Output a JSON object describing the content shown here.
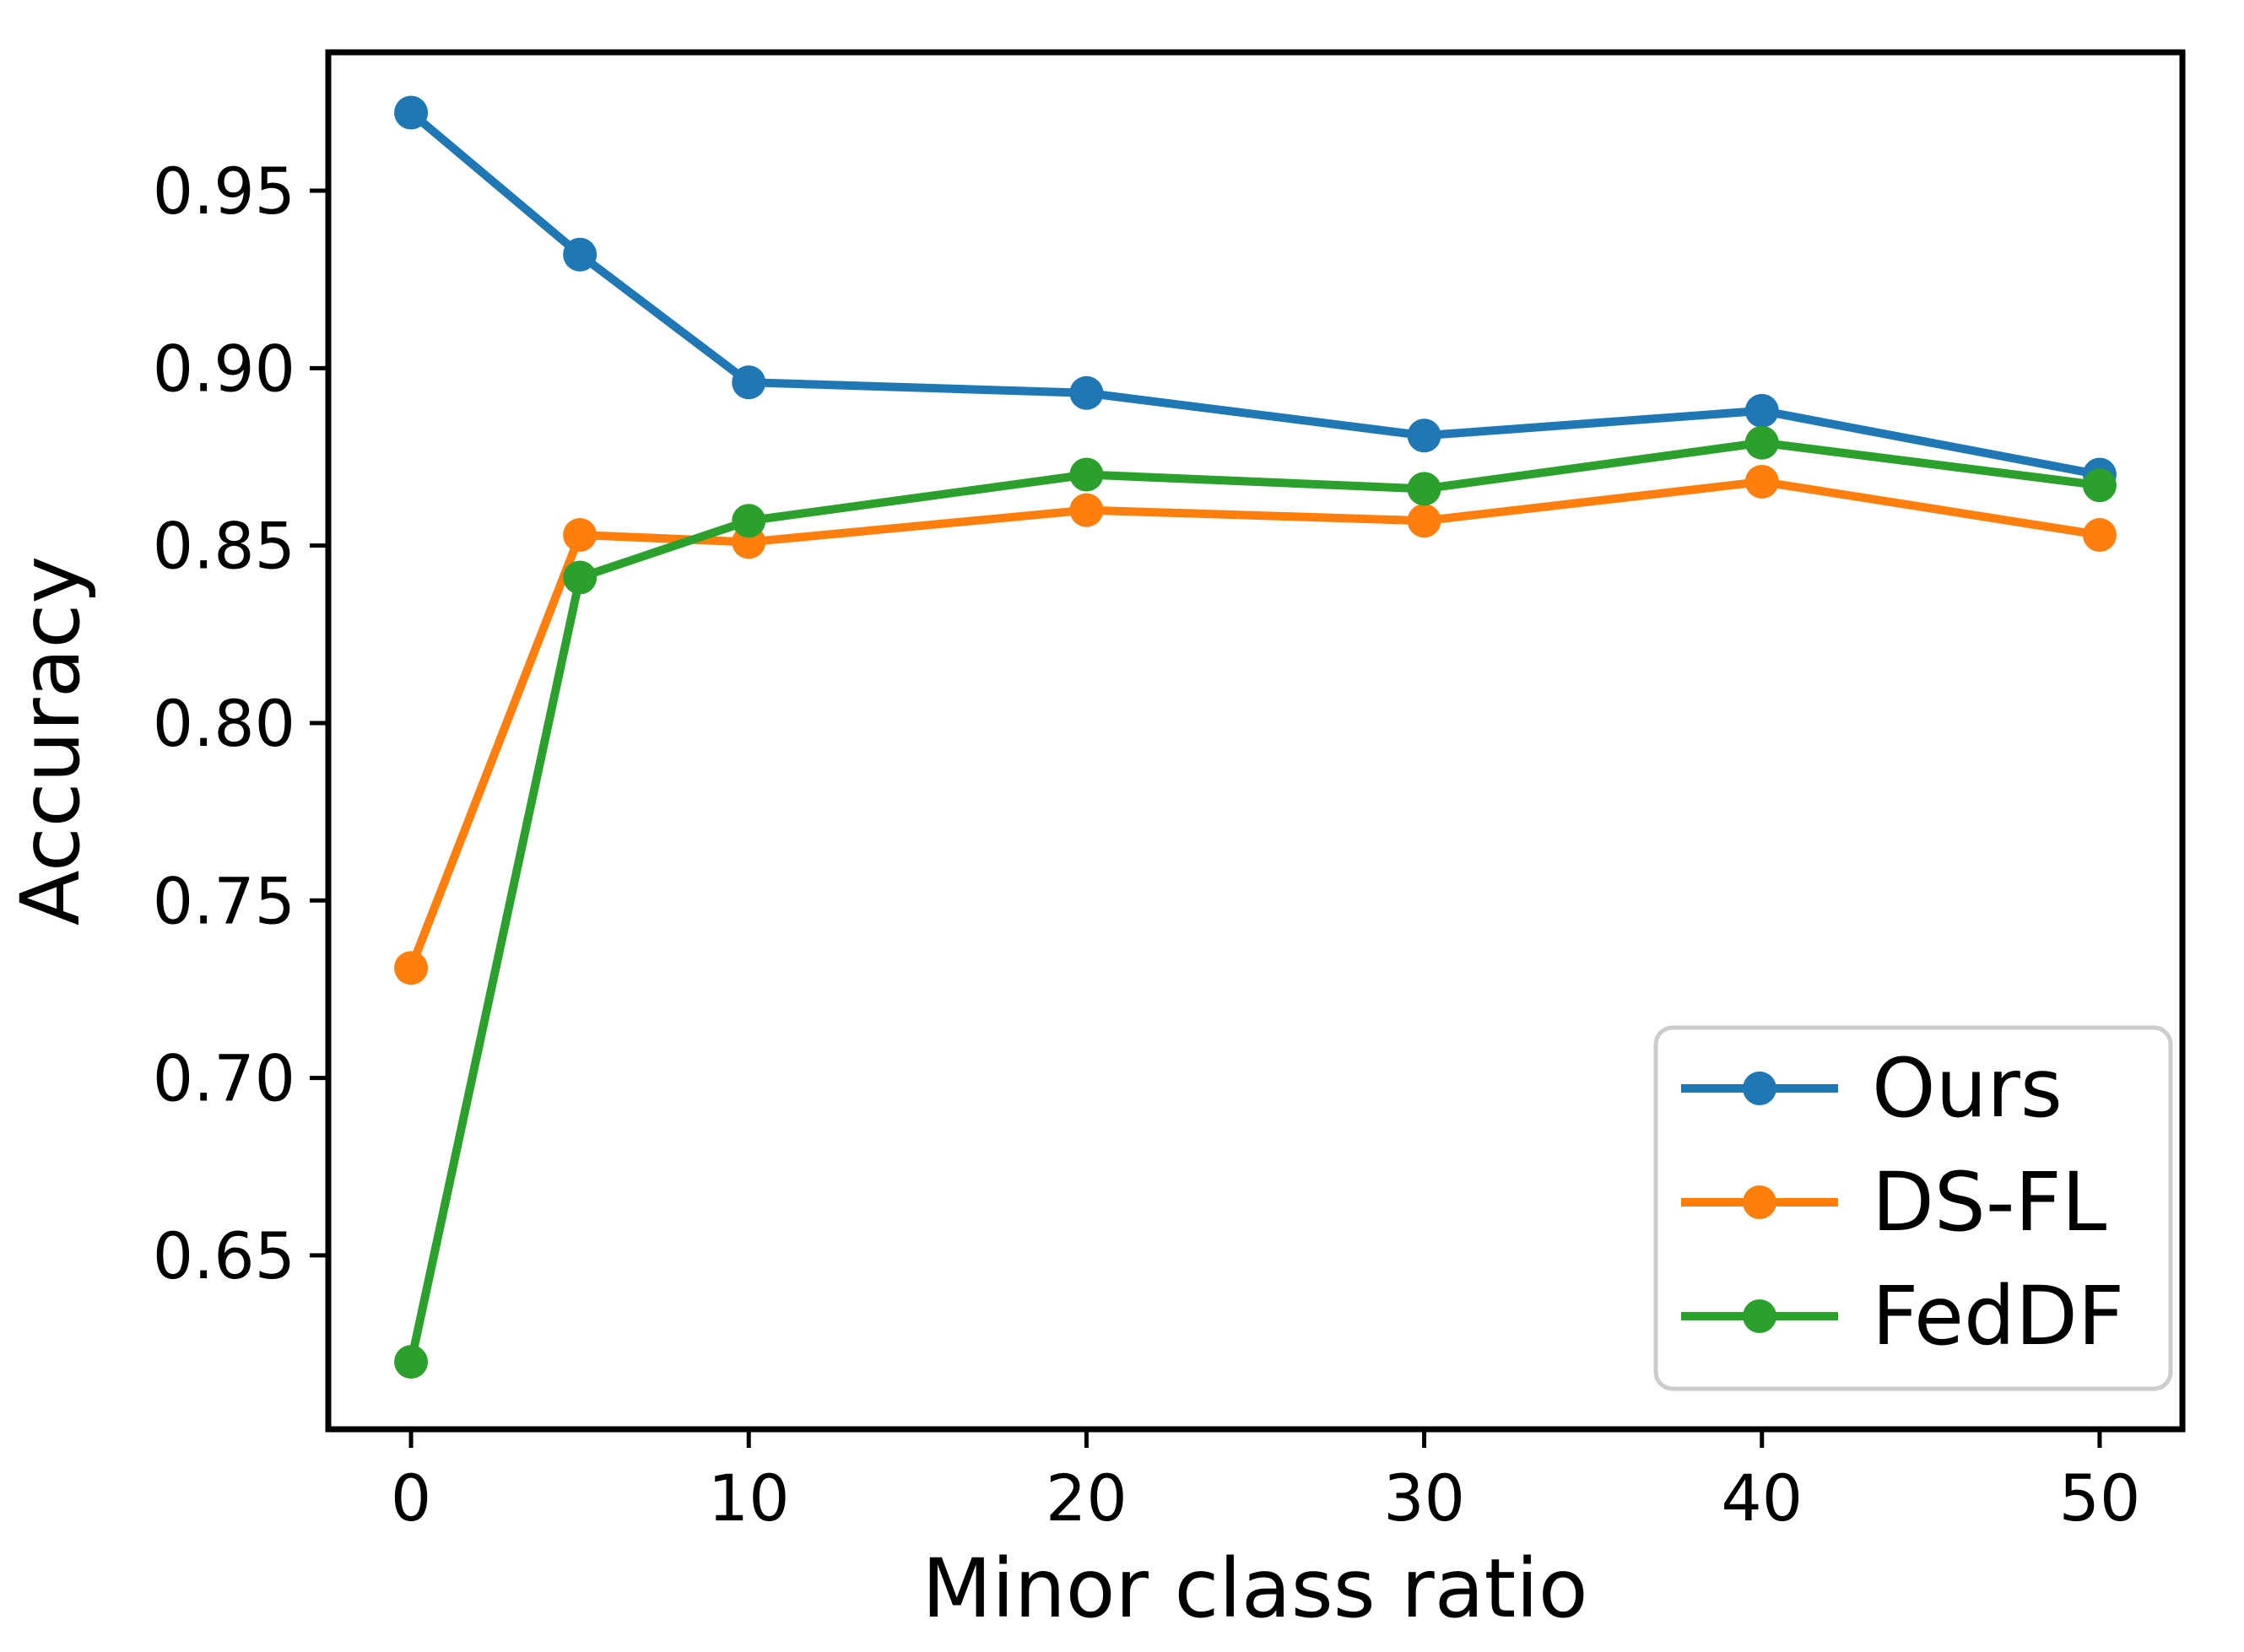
{
  "chart_data": {
    "type": "line",
    "title": "",
    "xlabel": "Minor class ratio",
    "ylabel": "Accuracy",
    "x": [
      0,
      5,
      10,
      20,
      30,
      40,
      50
    ],
    "series": [
      {
        "name": "Ours",
        "color": "#1f77b4",
        "values": [
          0.972,
          0.932,
          0.896,
          0.893,
          0.881,
          0.888,
          0.87
        ]
      },
      {
        "name": "DS-FL",
        "color": "#ff7f0e",
        "values": [
          0.731,
          0.853,
          0.851,
          0.86,
          0.857,
          0.868,
          0.853
        ]
      },
      {
        "name": "FedDF",
        "color": "#2ca02c",
        "values": [
          0.62,
          0.841,
          0.857,
          0.87,
          0.866,
          0.879,
          0.867
        ]
      }
    ],
    "xticks": [
      0,
      10,
      20,
      30,
      40,
      50
    ],
    "yticks": [
      0.65,
      0.7,
      0.75,
      0.8,
      0.85,
      0.9,
      0.95
    ],
    "ytick_labels": [
      "0.65",
      "0.70",
      "0.75",
      "0.80",
      "0.85",
      "0.90",
      "0.95"
    ],
    "xlim": [
      -2.45,
      52.45
    ],
    "ylim": [
      0.601,
      0.989
    ],
    "grid": false,
    "legend_position": "lower right",
    "marker": "circle",
    "background": "#ffffff",
    "spine_color": "#000000",
    "legend_border_color": "#cccccc"
  }
}
